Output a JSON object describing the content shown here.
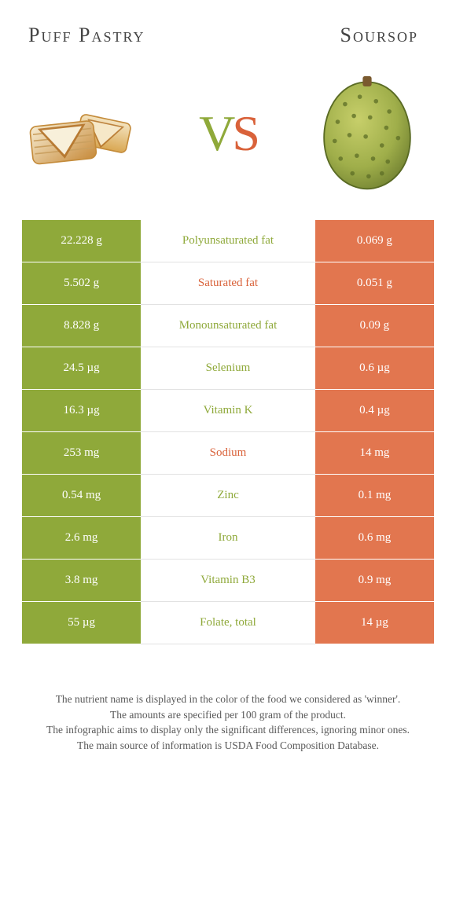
{
  "titles": {
    "left": "Puff Pastry",
    "right": "Soursop"
  },
  "vs": {
    "v": "V",
    "s": "S"
  },
  "colors": {
    "left": "#8fa93a",
    "right": "#e2764f",
    "left_text": "#8fa93a",
    "right_text": "#d9623a"
  },
  "rows": [
    {
      "left": "22.228 g",
      "label": "Polyunsaturated fat",
      "right": "0.069 g",
      "winner": "left"
    },
    {
      "left": "5.502 g",
      "label": "Saturated fat",
      "right": "0.051 g",
      "winner": "right"
    },
    {
      "left": "8.828 g",
      "label": "Monounsaturated fat",
      "right": "0.09 g",
      "winner": "left"
    },
    {
      "left": "24.5 µg",
      "label": "Selenium",
      "right": "0.6 µg",
      "winner": "left"
    },
    {
      "left": "16.3 µg",
      "label": "Vitamin K",
      "right": "0.4 µg",
      "winner": "left"
    },
    {
      "left": "253 mg",
      "label": "Sodium",
      "right": "14 mg",
      "winner": "right"
    },
    {
      "left": "0.54 mg",
      "label": "Zinc",
      "right": "0.1 mg",
      "winner": "left"
    },
    {
      "left": "2.6 mg",
      "label": "Iron",
      "right": "0.6 mg",
      "winner": "left"
    },
    {
      "left": "3.8 mg",
      "label": "Vitamin B3",
      "right": "0.9 mg",
      "winner": "left"
    },
    {
      "left": "55 µg",
      "label": "Folate, total",
      "right": "14 µg",
      "winner": "left"
    }
  ],
  "footer": {
    "l1": "The nutrient name is displayed in the color of the food we considered as 'winner'.",
    "l2": "The amounts are specified per 100 gram of the product.",
    "l3": "The infographic aims to display only the significant differences, ignoring minor ones.",
    "l4": "The main source of information is USDA Food Composition Database."
  }
}
